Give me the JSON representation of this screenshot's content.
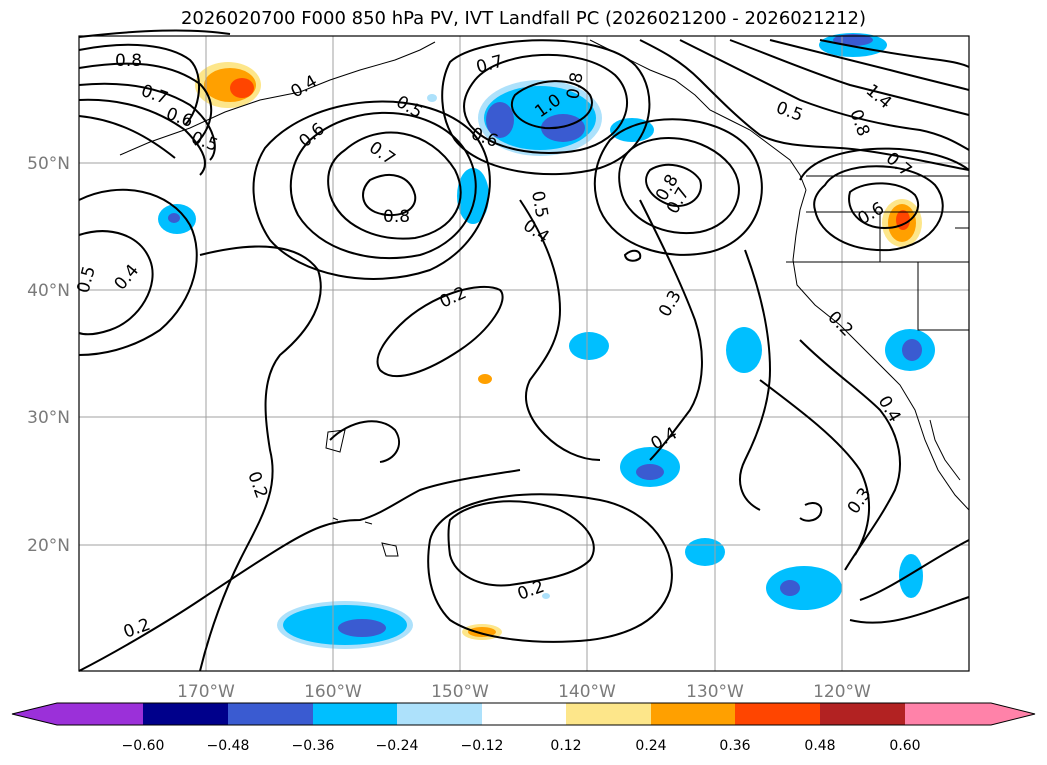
{
  "title": "2026020700 F000 850 hPa PV, IVT Landfall PC (2026021200 - 2026021212)",
  "axes": {
    "lat_labels": [
      "50°N",
      "40°N",
      "30°N",
      "20°N"
    ],
    "lon_labels": [
      "170°W",
      "160°W",
      "150°W",
      "140°W",
      "130°W",
      "120°W"
    ]
  },
  "contour_labels": [
    "0.8",
    "0.7",
    "0.6",
    "0.5",
    "0.4",
    "0.5",
    "0.6",
    "0.7",
    "0.8",
    "0.7",
    "1.0",
    "0.8",
    "0.6",
    "0.5",
    "0.4",
    "0.8",
    "0.7",
    "0.5",
    "1.4",
    "0.8",
    "0.7",
    "0.6",
    "0.5",
    "0.4",
    "0.2",
    "0.3",
    "0.2",
    "0.4",
    "0.3",
    "0.2",
    "0.2",
    "0.4",
    "0.2"
  ],
  "colorbar": {
    "ticks": [
      "−0.60",
      "−0.48",
      "−0.36",
      "−0.24",
      "−0.12",
      "0.12",
      "0.24",
      "0.36",
      "0.48",
      "0.60"
    ],
    "colors": [
      "#9b30d9",
      "#00008b",
      "#3a5bd1",
      "#00bfff",
      "#ade1fb",
      "#ffffff",
      "#fde68a",
      "#ffa000",
      "#ff4500",
      "#b22222",
      "#ff82a9"
    ]
  },
  "colors": {
    "frame": "#000000",
    "grid": "#a0a0a0",
    "tick_label": "#7a7a7a"
  }
}
